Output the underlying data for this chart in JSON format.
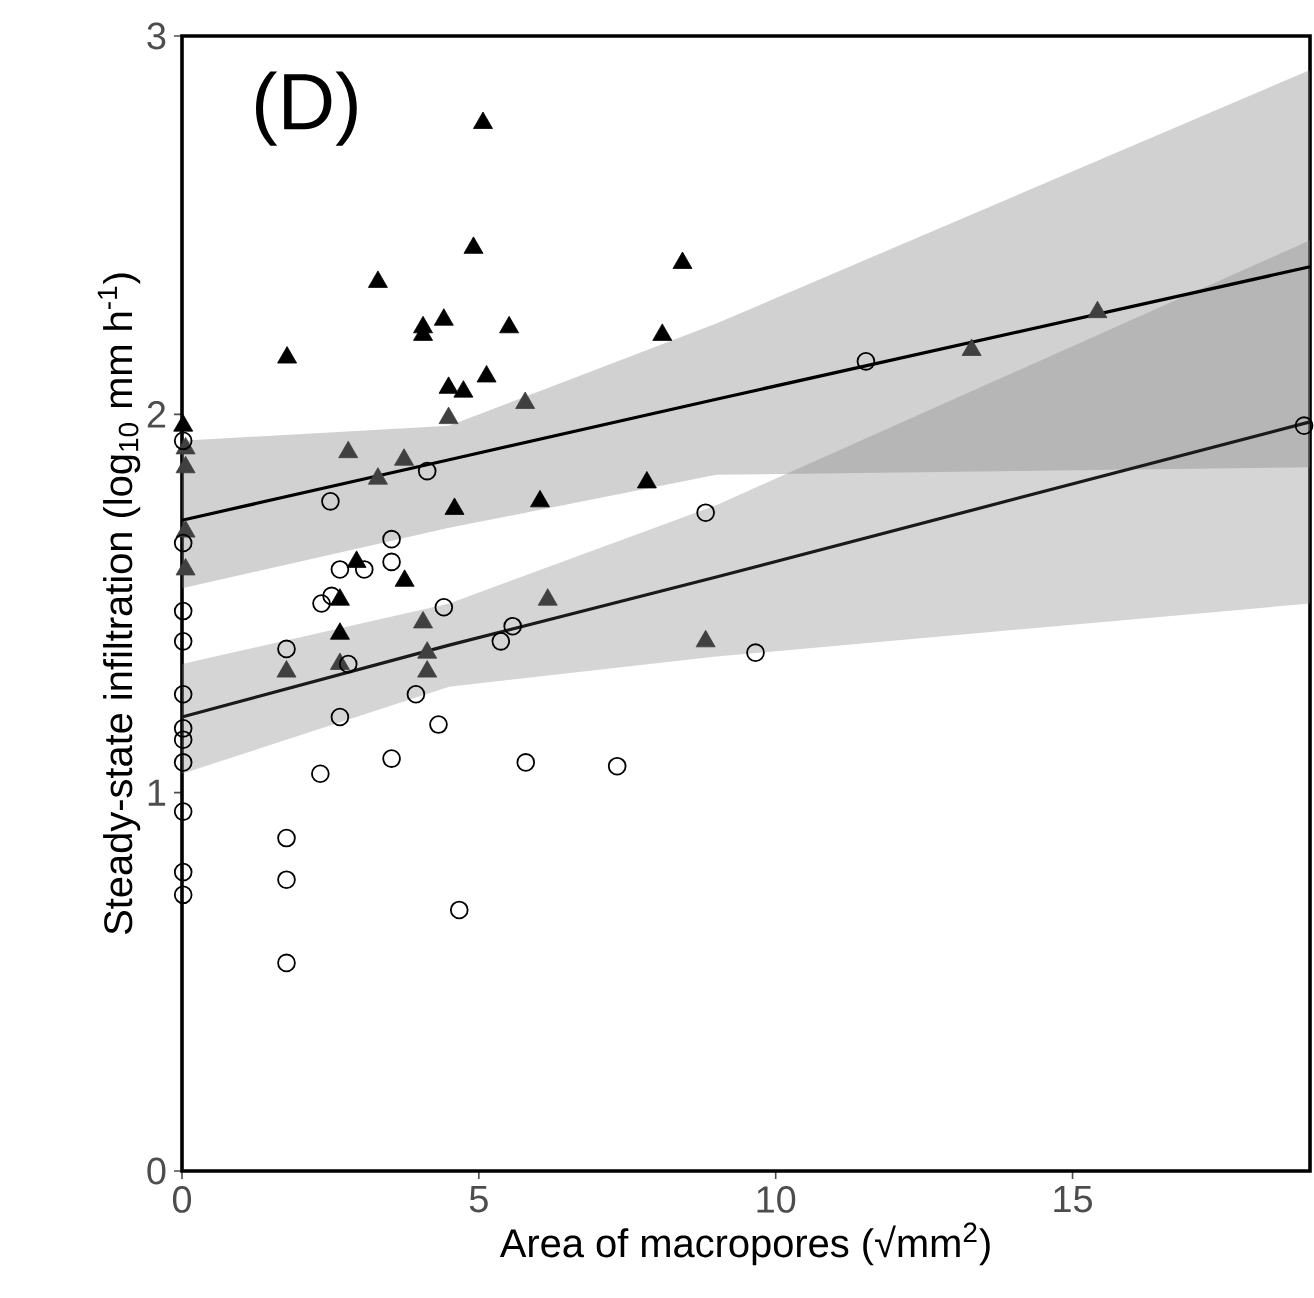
{
  "chart_data": {
    "type": "scatter",
    "title": "(D)",
    "xlabel": "Area of macropores (√mm$^{2}$)",
    "ylabel": "Steady-state infiltration (log$_{10}$ mm h$^{-1}$)",
    "xlim": [
      0,
      19
    ],
    "ylim": [
      0,
      3
    ],
    "xticks": [
      0,
      5,
      10,
      15
    ],
    "yticks": [
      0,
      1,
      2,
      3
    ],
    "grid": false,
    "series": [
      {
        "type": "line",
        "color": "#000000",
        "x": [
          0,
          4.5,
          9,
          19
        ],
        "values": [
          1.72,
          1.88,
          2.04,
          2.39
        ],
        "lower": [
          1.54,
          1.7,
          1.84,
          1.86
        ],
        "upper": [
          1.93,
          1.97,
          2.24,
          2.91
        ]
      },
      {
        "type": "line",
        "color": "#1a1a1a",
        "x": [
          0,
          4.5,
          9,
          19
        ],
        "values": [
          1.2,
          1.39,
          1.57,
          1.98
        ],
        "lower": [
          1.05,
          1.28,
          1.36,
          1.5
        ],
        "upper": [
          1.34,
          1.5,
          1.76,
          2.46
        ]
      },
      {
        "type": "scatter",
        "marker": "triangle",
        "color": "#000000",
        "x": [
          5.07,
          4.91,
          3.3,
          8.43,
          1.77,
          4.06,
          4.06,
          4.41,
          5.51,
          8.09,
          4.49,
          4.74,
          5.13,
          0.02,
          7.83,
          4.59,
          6.03,
          2.94,
          3.75,
          2.66,
          2.66
        ],
        "values": [
          2.77,
          2.44,
          2.35,
          2.4,
          2.15,
          2.23,
          2.21,
          2.25,
          2.23,
          2.21,
          2.07,
          2.06,
          2.1,
          1.97,
          1.82,
          1.75,
          1.77,
          1.61,
          1.56,
          1.51,
          1.42
        ]
      },
      {
        "type": "scatter",
        "marker": "triangle",
        "color": "#404040",
        "x": [
          0.06,
          0.06,
          2.8,
          3.3,
          3.74,
          4.49,
          5.78,
          0.06,
          0.06,
          6.16,
          4.06,
          4.13,
          4.13,
          1.76,
          2.66,
          8.82,
          13.3,
          15.42
        ],
        "values": [
          1.91,
          1.86,
          1.9,
          1.83,
          1.88,
          1.99,
          2.03,
          1.69,
          1.59,
          1.51,
          1.45,
          1.37,
          1.32,
          1.32,
          1.34,
          1.4,
          2.17,
          2.27
        ]
      },
      {
        "type": "scatter",
        "marker": "circle",
        "color": "#000000",
        "x": [
          0.02,
          4.13,
          2.5,
          0.02,
          3.53,
          2.66,
          3.07,
          3.53,
          2.35,
          2.52,
          0.02,
          4.41,
          8.82,
          0.02,
          1.76,
          2.8,
          5.57,
          5.37,
          0.02,
          3.94,
          2.66,
          0.02,
          0.02,
          4.32,
          0.02,
          3.53,
          2.33,
          5.79,
          7.33,
          0.02,
          1.76,
          0.02,
          0.02,
          1.76,
          4.67,
          1.76,
          11.52,
          9.66,
          18.9
        ],
        "values": [
          1.93,
          1.85,
          1.77,
          1.66,
          1.67,
          1.59,
          1.59,
          1.61,
          1.5,
          1.52,
          1.48,
          1.49,
          1.74,
          1.4,
          1.38,
          1.34,
          1.44,
          1.4,
          1.26,
          1.26,
          1.2,
          1.17,
          1.14,
          1.18,
          1.08,
          1.09,
          1.05,
          1.08,
          1.07,
          0.95,
          0.88,
          0.79,
          0.73,
          0.77,
          0.69,
          0.55,
          2.14,
          1.37,
          1.97
        ]
      }
    ]
  }
}
